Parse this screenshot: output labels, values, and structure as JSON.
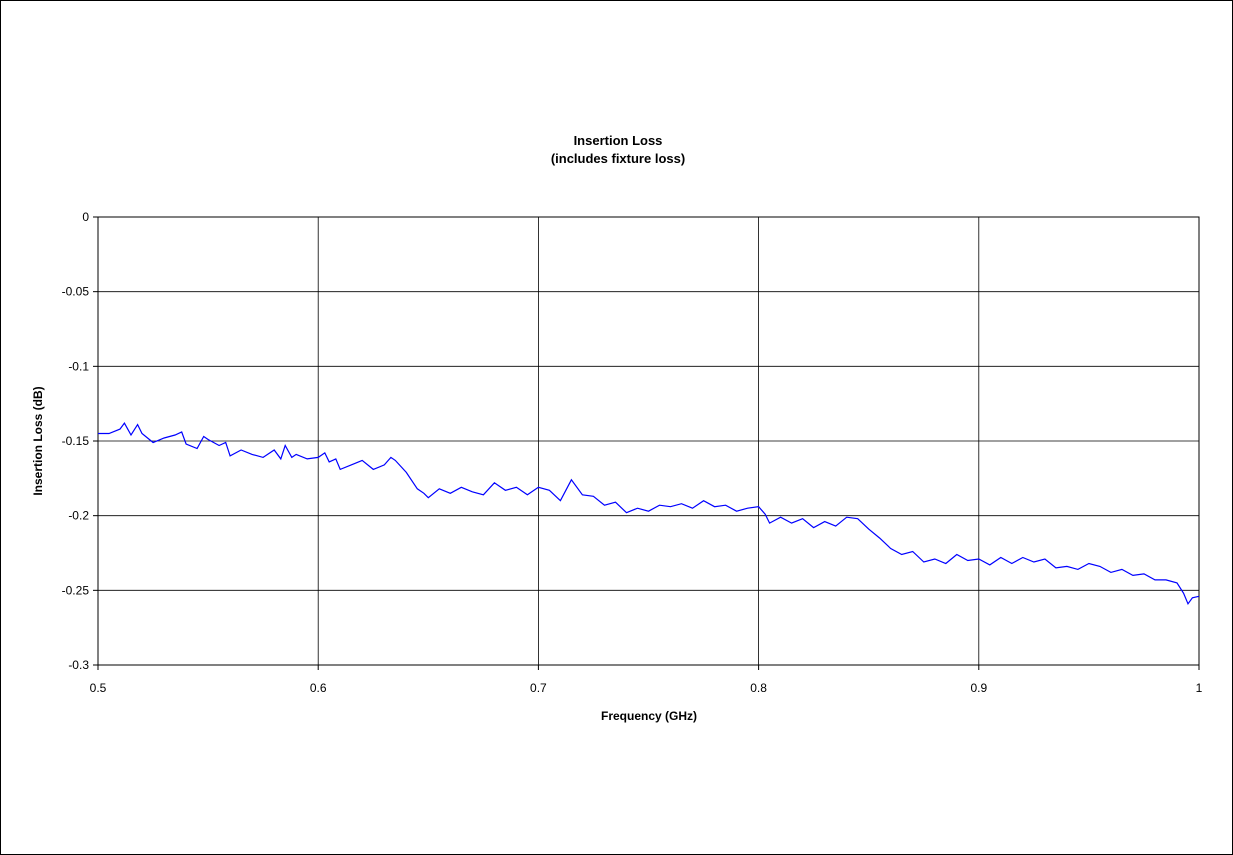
{
  "chart_data": {
    "type": "line",
    "title": "Insertion Loss",
    "subtitle": "(includes fixture loss)",
    "xlabel": "Frequency (GHz)",
    "ylabel": "Insertion Loss (dB)",
    "xlim": [
      0.5,
      1.0
    ],
    "ylim": [
      -0.3,
      0
    ],
    "x_ticks": [
      "0.5",
      "0.6",
      "0.7",
      "0.8",
      "0.9",
      "1"
    ],
    "y_ticks": [
      "0",
      "-0.05",
      "-0.1",
      "-0.15",
      "-0.2",
      "-0.25",
      "-0.3"
    ],
    "grid": true,
    "legend": "none",
    "line_color": "#0000ff",
    "series": [
      {
        "x": [
          0.5,
          0.505,
          0.51,
          0.512,
          0.515,
          0.518,
          0.52,
          0.525,
          0.53,
          0.535,
          0.538,
          0.54,
          0.545,
          0.548,
          0.55,
          0.555,
          0.558,
          0.56,
          0.565,
          0.57,
          0.575,
          0.58,
          0.583,
          0.585,
          0.588,
          0.59,
          0.595,
          0.6,
          0.603,
          0.605,
          0.608,
          0.61,
          0.615,
          0.62,
          0.625,
          0.63,
          0.633,
          0.635,
          0.64,
          0.645,
          0.648,
          0.65,
          0.655,
          0.66,
          0.665,
          0.67,
          0.675,
          0.68,
          0.685,
          0.69,
          0.695,
          0.7,
          0.705,
          0.71,
          0.715,
          0.72,
          0.725,
          0.73,
          0.735,
          0.74,
          0.745,
          0.75,
          0.755,
          0.76,
          0.765,
          0.77,
          0.775,
          0.78,
          0.785,
          0.79,
          0.795,
          0.8,
          0.803,
          0.805,
          0.81,
          0.815,
          0.82,
          0.825,
          0.83,
          0.835,
          0.84,
          0.845,
          0.85,
          0.855,
          0.86,
          0.865,
          0.87,
          0.875,
          0.88,
          0.885,
          0.89,
          0.895,
          0.9,
          0.905,
          0.91,
          0.915,
          0.92,
          0.925,
          0.93,
          0.935,
          0.94,
          0.945,
          0.95,
          0.955,
          0.96,
          0.965,
          0.97,
          0.975,
          0.98,
          0.985,
          0.99,
          0.993,
          0.995,
          0.997,
          1.0
        ],
        "y": [
          -0.145,
          -0.145,
          -0.142,
          -0.138,
          -0.146,
          -0.139,
          -0.145,
          -0.151,
          -0.148,
          -0.146,
          -0.144,
          -0.152,
          -0.155,
          -0.147,
          -0.149,
          -0.153,
          -0.151,
          -0.16,
          -0.156,
          -0.159,
          -0.161,
          -0.156,
          -0.162,
          -0.153,
          -0.161,
          -0.159,
          -0.162,
          -0.161,
          -0.158,
          -0.164,
          -0.162,
          -0.169,
          -0.166,
          -0.163,
          -0.169,
          -0.166,
          -0.161,
          -0.163,
          -0.171,
          -0.182,
          -0.185,
          -0.188,
          -0.182,
          -0.185,
          -0.181,
          -0.184,
          -0.186,
          -0.178,
          -0.183,
          -0.181,
          -0.186,
          -0.181,
          -0.183,
          -0.19,
          -0.176,
          -0.186,
          -0.187,
          -0.193,
          -0.191,
          -0.198,
          -0.195,
          -0.197,
          -0.193,
          -0.194,
          -0.192,
          -0.195,
          -0.19,
          -0.194,
          -0.193,
          -0.197,
          -0.195,
          -0.194,
          -0.199,
          -0.205,
          -0.201,
          -0.205,
          -0.202,
          -0.208,
          -0.204,
          -0.207,
          -0.201,
          -0.202,
          -0.209,
          -0.215,
          -0.222,
          -0.226,
          -0.224,
          -0.231,
          -0.229,
          -0.232,
          -0.226,
          -0.23,
          -0.229,
          -0.233,
          -0.228,
          -0.232,
          -0.228,
          -0.231,
          -0.229,
          -0.235,
          -0.234,
          -0.236,
          -0.232,
          -0.234,
          -0.238,
          -0.236,
          -0.24,
          -0.239,
          -0.243,
          -0.243,
          -0.245,
          -0.252,
          -0.259,
          -0.255,
          -0.254
        ]
      }
    ]
  },
  "colors": {
    "frame": "#000000",
    "grid": "#000000",
    "line": "#0000ff",
    "background": "#ffffff"
  }
}
